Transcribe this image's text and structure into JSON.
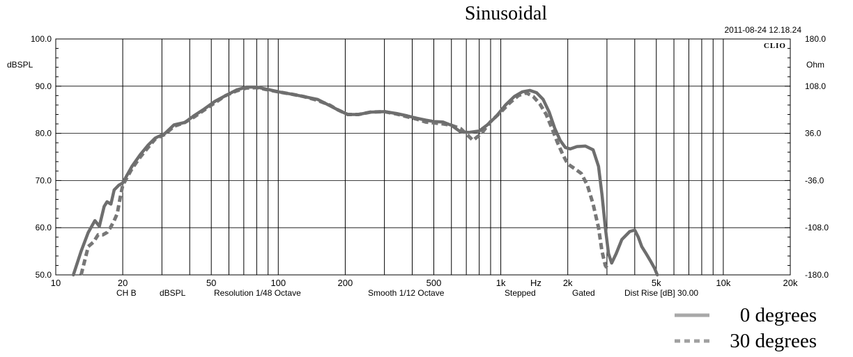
{
  "chart_data": {
    "type": "line",
    "title": "Sinusoidal",
    "timestamp": "2011-08-24 12.18.24",
    "brand": "CLIO",
    "xscale": "log",
    "xlim": [
      10,
      20000
    ],
    "ylim": [
      50,
      100
    ],
    "y2lim": [
      -180,
      180
    ],
    "xunit": "Hz",
    "ylabel": "dBSPL",
    "y2label": "Ohm",
    "x_ticks": [
      {
        "v": 10,
        "label": "10"
      },
      {
        "v": 20,
        "label": "20"
      },
      {
        "v": 50,
        "label": "50"
      },
      {
        "v": 100,
        "label": "100"
      },
      {
        "v": 200,
        "label": "200"
      },
      {
        "v": 500,
        "label": "500"
      },
      {
        "v": 1000,
        "label": "1k"
      },
      {
        "v": 2000,
        "label": "2k"
      },
      {
        "v": 5000,
        "label": "5k"
      },
      {
        "v": 10000,
        "label": "10k"
      },
      {
        "v": 20000,
        "label": "20k"
      }
    ],
    "y_ticks": [
      {
        "v": 50,
        "label": "50.0"
      },
      {
        "v": 60,
        "label": "60.0"
      },
      {
        "v": 70,
        "label": "70.0"
      },
      {
        "v": 80,
        "label": "80.0"
      },
      {
        "v": 90,
        "label": "90.0"
      },
      {
        "v": 100,
        "label": "100.0"
      }
    ],
    "y2_ticks": [
      {
        "v": -180,
        "label": "-180.0"
      },
      {
        "v": -108,
        "label": "-108.0"
      },
      {
        "v": -36,
        "label": "-36.0"
      },
      {
        "v": 36,
        "label": "36.0"
      },
      {
        "v": 108,
        "label": "108.0"
      },
      {
        "v": 180,
        "label": "180.0"
      }
    ],
    "footer": {
      "channel": "CH B",
      "unit": "dBSPL",
      "resolution": "Resolution 1/48 Octave",
      "smooth": "Smooth 1/12 Octave",
      "mode": "Stepped",
      "gating": "Gated",
      "dist_rise": "Dist Rise [dB] 30.00"
    },
    "legend": {
      "position": "bottom-right"
    },
    "series": [
      {
        "name": "0 degrees",
        "style": "solid",
        "color": "#6e6e6e",
        "legend_color": "#a8a8a8",
        "points": [
          [
            12,
            50
          ],
          [
            13,
            55
          ],
          [
            14,
            59
          ],
          [
            15,
            61.5
          ],
          [
            15.7,
            60.3
          ],
          [
            16.5,
            64.5
          ],
          [
            17,
            65.5
          ],
          [
            17.7,
            65
          ],
          [
            18.3,
            68
          ],
          [
            19.2,
            69
          ],
          [
            20,
            69.5
          ],
          [
            22,
            73
          ],
          [
            24,
            75.5
          ],
          [
            26,
            77.5
          ],
          [
            28,
            79
          ],
          [
            31,
            80
          ],
          [
            34,
            81.8
          ],
          [
            38,
            82.3
          ],
          [
            42,
            83.8
          ],
          [
            46,
            85
          ],
          [
            52,
            86.8
          ],
          [
            58,
            88
          ],
          [
            65,
            89.2
          ],
          [
            72,
            89.8
          ],
          [
            80,
            89.8
          ],
          [
            90,
            89.3
          ],
          [
            100,
            88.8
          ],
          [
            115,
            88.3
          ],
          [
            130,
            87.8
          ],
          [
            150,
            87.2
          ],
          [
            165,
            86.2
          ],
          [
            185,
            85
          ],
          [
            205,
            84
          ],
          [
            230,
            84
          ],
          [
            260,
            84.5
          ],
          [
            300,
            84.6
          ],
          [
            340,
            84.2
          ],
          [
            380,
            83.7
          ],
          [
            420,
            83.2
          ],
          [
            460,
            82.8
          ],
          [
            500,
            82.5
          ],
          [
            550,
            82.4
          ],
          [
            600,
            81.7
          ],
          [
            660,
            80.3
          ],
          [
            720,
            80.2
          ],
          [
            800,
            80.5
          ],
          [
            870,
            81.8
          ],
          [
            950,
            83.5
          ],
          [
            1050,
            86
          ],
          [
            1150,
            87.8
          ],
          [
            1250,
            88.8
          ],
          [
            1350,
            89.1
          ],
          [
            1450,
            88.6
          ],
          [
            1550,
            87.2
          ],
          [
            1650,
            84.5
          ],
          [
            1750,
            81
          ],
          [
            1850,
            78.5
          ],
          [
            1950,
            77
          ],
          [
            2050,
            76.7
          ],
          [
            2200,
            77.2
          ],
          [
            2400,
            77.3
          ],
          [
            2600,
            76.5
          ],
          [
            2750,
            73
          ],
          [
            2850,
            67
          ],
          [
            2950,
            60
          ],
          [
            3050,
            54.5
          ],
          [
            3150,
            52.5
          ],
          [
            3300,
            54.5
          ],
          [
            3500,
            57.5
          ],
          [
            3800,
            59.2
          ],
          [
            4000,
            59.5
          ],
          [
            4150,
            58
          ],
          [
            4300,
            56
          ],
          [
            4500,
            54.5
          ],
          [
            4700,
            53
          ],
          [
            4900,
            51.5
          ],
          [
            5050,
            50
          ]
        ]
      },
      {
        "name": "30 degrees",
        "style": "dashed",
        "color": "#777777",
        "legend_color": "#a0a0a0",
        "points": [
          [
            13,
            50
          ],
          [
            14,
            56
          ],
          [
            14.8,
            57
          ],
          [
            15.5,
            58.5
          ],
          [
            16.3,
            58.5
          ],
          [
            17,
            59
          ],
          [
            17.6,
            60
          ],
          [
            18.3,
            61.5
          ],
          [
            18.9,
            63
          ],
          [
            19.5,
            66.5
          ],
          [
            20,
            69
          ],
          [
            22,
            72.5
          ],
          [
            24,
            75
          ],
          [
            26,
            77
          ],
          [
            28,
            78.8
          ],
          [
            31,
            79.8
          ],
          [
            34,
            81.5
          ],
          [
            38,
            82.3
          ],
          [
            42,
            83.5
          ],
          [
            46,
            84.8
          ],
          [
            52,
            86.5
          ],
          [
            58,
            88
          ],
          [
            65,
            89
          ],
          [
            72,
            89.6
          ],
          [
            80,
            89.7
          ],
          [
            90,
            89.2
          ],
          [
            100,
            88.8
          ],
          [
            115,
            88.3
          ],
          [
            130,
            87.8
          ],
          [
            150,
            87
          ],
          [
            170,
            86
          ],
          [
            185,
            85
          ],
          [
            205,
            84
          ],
          [
            230,
            84
          ],
          [
            260,
            84.5
          ],
          [
            300,
            84.6
          ],
          [
            340,
            84.1
          ],
          [
            380,
            83.5
          ],
          [
            420,
            83
          ],
          [
            460,
            82.4
          ],
          [
            500,
            82.2
          ],
          [
            550,
            82
          ],
          [
            600,
            81.7
          ],
          [
            660,
            81
          ],
          [
            710,
            79.6
          ],
          [
            750,
            78.5
          ],
          [
            820,
            80
          ],
          [
            900,
            82.5
          ],
          [
            1000,
            84.5
          ],
          [
            1100,
            86.5
          ],
          [
            1200,
            88
          ],
          [
            1300,
            88.6
          ],
          [
            1400,
            87.8
          ],
          [
            1500,
            86.2
          ],
          [
            1600,
            84
          ],
          [
            1700,
            81
          ],
          [
            1800,
            78
          ],
          [
            1900,
            75.5
          ],
          [
            2000,
            73.5
          ],
          [
            2150,
            72.5
          ],
          [
            2300,
            71.5
          ],
          [
            2450,
            69
          ],
          [
            2600,
            65
          ],
          [
            2750,
            60
          ],
          [
            2850,
            55
          ],
          [
            2950,
            52
          ],
          [
            3050,
            51
          ]
        ]
      }
    ]
  }
}
